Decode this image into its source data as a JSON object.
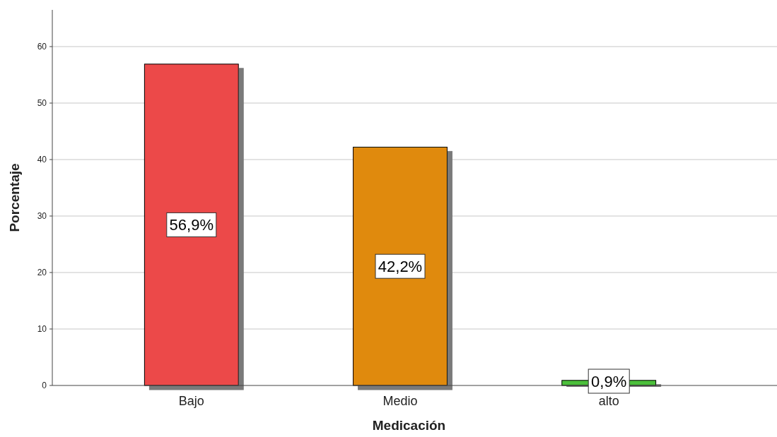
{
  "chart_data": {
    "type": "bar",
    "xlabel": "Medicación",
    "ylabel": "Porcentaje",
    "categories": [
      "Bajo",
      "Medio",
      "alto"
    ],
    "values": [
      56.9,
      42.2,
      0.9
    ],
    "colors": [
      "#ec4a4a",
      "#e08a10",
      "#4cbf3a"
    ],
    "value_labels": [
      "56,9%",
      "42,2%",
      "0,9%"
    ],
    "ylim": [
      0,
      66.5
    ],
    "yticks": [
      0,
      10,
      20,
      30,
      40,
      50,
      60
    ],
    "grid": "y"
  }
}
